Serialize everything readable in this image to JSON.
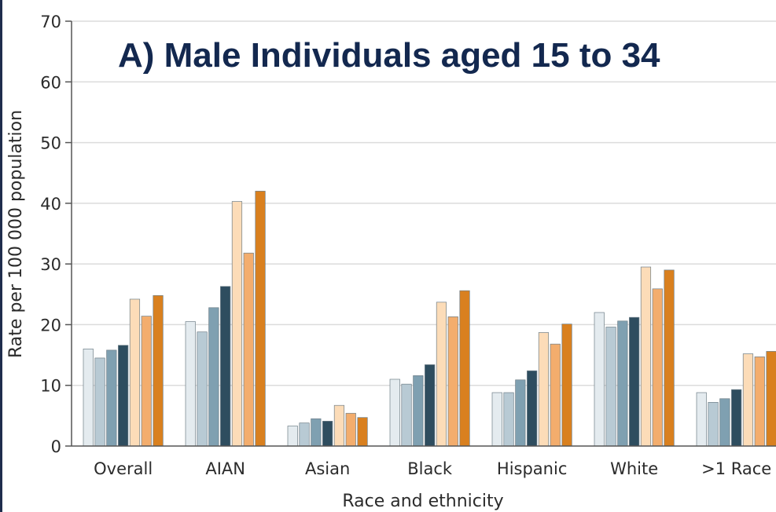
{
  "chart_data": {
    "type": "bar",
    "title": "A) Male Individuals aged 15 to 34",
    "xlabel": "Race and ethnicity",
    "ylabel": "Rate per 100 000 population",
    "ylim": [
      0,
      70
    ],
    "yticks": [
      "0",
      "10",
      "20",
      "30",
      "40",
      "50",
      "60",
      "70"
    ],
    "grid": true,
    "categories": [
      "Overall",
      "AIAN",
      "Asian",
      "Black",
      "Hispanic",
      "White",
      ">1 Race"
    ],
    "series": [
      {
        "color": "#e4ebef",
        "values": [
          16.0,
          20.5,
          3.3,
          11.0,
          8.8,
          22.0,
          8.8
        ]
      },
      {
        "color": "#b8cad4",
        "values": [
          14.5,
          18.8,
          3.8,
          10.2,
          8.8,
          19.6,
          7.2
        ]
      },
      {
        "color": "#7fa0b1",
        "values": [
          15.8,
          22.8,
          4.5,
          11.6,
          10.9,
          20.6,
          7.8
        ]
      },
      {
        "color": "#2e4d5f",
        "values": [
          16.6,
          26.3,
          4.1,
          13.4,
          12.4,
          21.2,
          9.3
        ]
      },
      {
        "color": "#fcdcb8",
        "values": [
          24.2,
          40.3,
          6.7,
          23.7,
          18.7,
          29.5,
          15.2
        ]
      },
      {
        "color": "#f3ad6d",
        "values": [
          21.4,
          31.8,
          5.4,
          21.3,
          16.8,
          25.9,
          14.7
        ]
      },
      {
        "color": "#d9801f",
        "values": [
          24.8,
          42.0,
          4.7,
          25.6,
          20.1,
          29.0,
          15.6
        ]
      }
    ]
  }
}
